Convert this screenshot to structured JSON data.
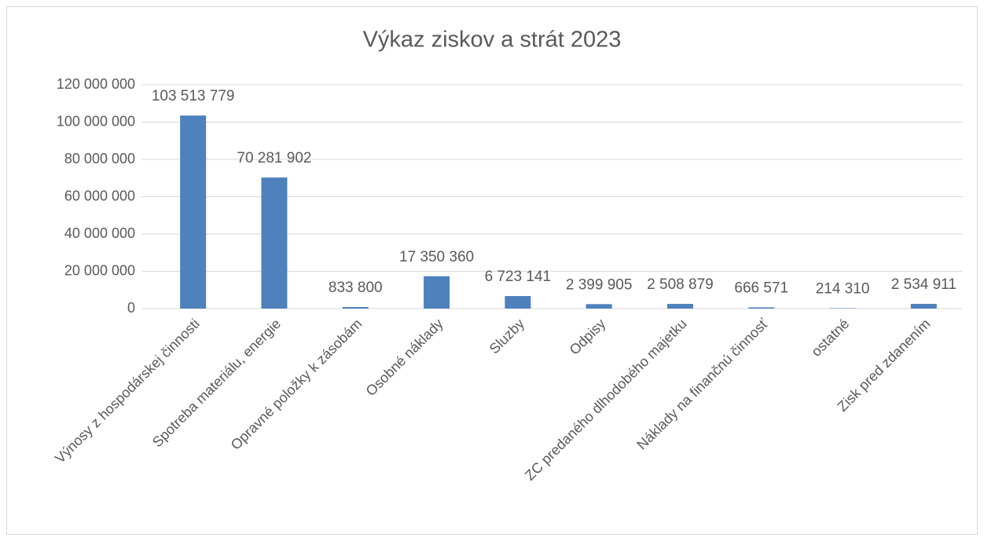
{
  "chart_data": {
    "type": "bar",
    "title": "Výkaz ziskov a strát 2023",
    "categories": [
      "Výnosy z hospodárskej činnosti",
      "Spotreba materiálu, energie",
      "Opravné položky k zásobám",
      "Osobné náklady",
      "Sluzby",
      "Odpisy",
      "ZC predaného dlhodobého majetku",
      "Náklady na finančnú činnosť",
      "ostatné",
      "Zisk pred zdanením"
    ],
    "values": [
      103513779,
      70281902,
      833800,
      17350360,
      6723141,
      2399905,
      2508879,
      666571,
      214310,
      2534911
    ],
    "value_labels": [
      "103 513 779",
      "70 281 902",
      "833 800",
      "17 350 360",
      "6 723 141",
      "2 399 905",
      "2 508 879",
      "666 571",
      "214 310",
      "2 534 911"
    ],
    "color": "#4f81bd",
    "ylim": [
      0,
      120000000
    ],
    "yticks": [
      {
        "value": 0,
        "label": "0"
      },
      {
        "value": 20000000,
        "label": "20 000 000"
      },
      {
        "value": 40000000,
        "label": "40 000 000"
      },
      {
        "value": 60000000,
        "label": "60 000 000"
      },
      {
        "value": 80000000,
        "label": "80 000 000"
      },
      {
        "value": 100000000,
        "label": "100 000 000"
      },
      {
        "value": 120000000,
        "label": "120 000 000"
      }
    ],
    "grid": true
  }
}
